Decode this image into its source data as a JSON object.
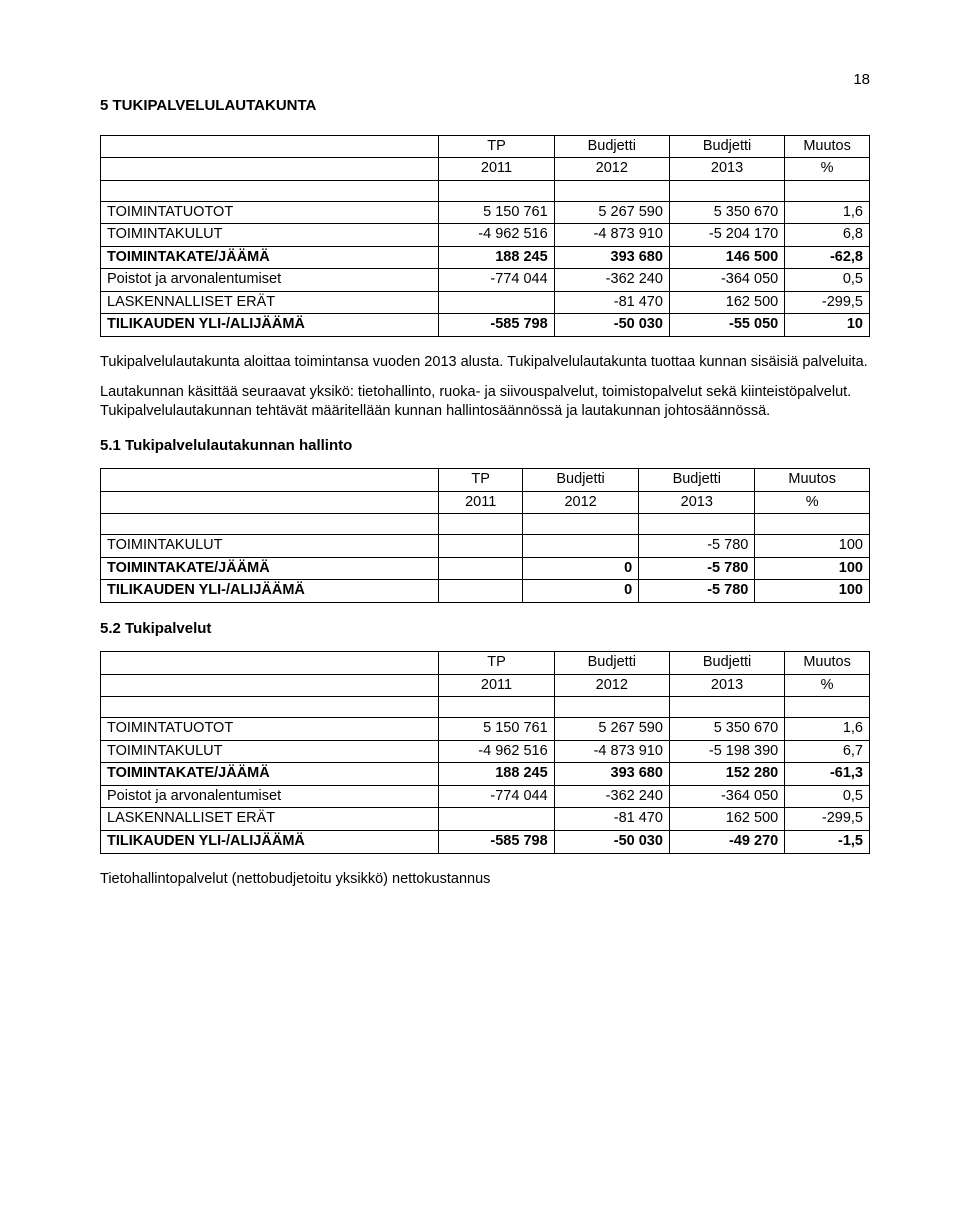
{
  "page_number": "18",
  "heading": "5   TUKIPALVELULAUTAKUNTA",
  "thead": {
    "row1": [
      "",
      "TP",
      "Budjetti",
      "Budjetti",
      "Muutos"
    ],
    "row2": [
      "",
      "2011",
      "2012",
      "2013",
      "%"
    ]
  },
  "table1": [
    {
      "label": "",
      "c1": "",
      "c2": "",
      "c3": "",
      "c4": "",
      "bold": false
    },
    {
      "label": "TOIMINTATUOTOT",
      "c1": "5 150 761",
      "c2": "5 267 590",
      "c3": "5 350 670",
      "c4": "1,6",
      "bold": false
    },
    {
      "label": "TOIMINTAKULUT",
      "c1": "-4 962 516",
      "c2": "-4 873 910",
      "c3": "-5 204 170",
      "c4": "6,8",
      "bold": false
    },
    {
      "label": "TOIMINTAKATE/JÄÄMÄ",
      "c1": "188 245",
      "c2": "393 680",
      "c3": "146 500",
      "c4": "-62,8",
      "bold": true
    },
    {
      "label": "Poistot ja arvonalentumiset",
      "c1": "-774 044",
      "c2": "-362 240",
      "c3": "-364 050",
      "c4": "0,5",
      "bold": false
    },
    {
      "label": "LASKENNALLISET ERÄT",
      "c1": "",
      "c2": "-81 470",
      "c3": "162 500",
      "c4": "-299,5",
      "bold": false
    },
    {
      "label": "TILIKAUDEN YLI-/ALIJÄÄMÄ",
      "c1": "-585 798",
      "c2": "-50 030",
      "c3": "-55 050",
      "c4": "10",
      "bold": true
    }
  ],
  "para1": "Tukipalvelulautakunta aloittaa toimintansa vuoden 2013 alusta. Tukipalvelulautakunta tuottaa kunnan sisäisiä palveluita.",
  "para2": "Lautakunnan käsittää seuraavat yksikö: tietohallinto, ruoka- ja siivouspalvelut, toimistopalvelut sekä kiinteistöpalvelut. Tukipalvelulautakunnan tehtävät määritellään kunnan hallintosäännössä ja lautakunnan johtosäännössä.",
  "heading2": "5.1 Tukipalvelulautakunnan hallinto",
  "table2": [
    {
      "label": "",
      "c1": "",
      "c2": "",
      "c3": "",
      "c4": "",
      "bold": false
    },
    {
      "label": "TOIMINTAKULUT",
      "c1": "",
      "c2": "",
      "c3": "-5 780",
      "c4": "100",
      "bold": false
    },
    {
      "label": "TOIMINTAKATE/JÄÄMÄ",
      "c1": "",
      "c2": "0",
      "c3": "-5 780",
      "c4": "100",
      "bold": true
    },
    {
      "label": "TILIKAUDEN YLI-/ALIJÄÄMÄ",
      "c1": "",
      "c2": "0",
      "c3": "-5 780",
      "c4": "100",
      "bold": true
    }
  ],
  "heading3": "5.2 Tukipalvelut",
  "table3": [
    {
      "label": "",
      "c1": "",
      "c2": "",
      "c3": "",
      "c4": "",
      "bold": false
    },
    {
      "label": "TOIMINTATUOTOT",
      "c1": "5 150 761",
      "c2": "5 267 590",
      "c3": "5 350 670",
      "c4": "1,6",
      "bold": false
    },
    {
      "label": "TOIMINTAKULUT",
      "c1": "-4 962 516",
      "c2": "-4 873 910",
      "c3": "-5 198 390",
      "c4": "6,7",
      "bold": false
    },
    {
      "label": "TOIMINTAKATE/JÄÄMÄ",
      "c1": "188 245",
      "c2": "393 680",
      "c3": "152 280",
      "c4": "-61,3",
      "bold": true
    },
    {
      "label": "Poistot ja arvonalentumiset",
      "c1": "-774 044",
      "c2": "-362 240",
      "c3": "-364 050",
      "c4": "0,5",
      "bold": false
    },
    {
      "label": "LASKENNALLISET ERÄT",
      "c1": "",
      "c2": "-81 470",
      "c3": "162 500",
      "c4": "-299,5",
      "bold": false
    },
    {
      "label": "TILIKAUDEN YLI-/ALIJÄÄMÄ",
      "c1": "-585 798",
      "c2": "-50 030",
      "c3": "-49 270",
      "c4": "-1,5",
      "bold": true
    }
  ],
  "footer": "Tietohallintopalvelut   (nettobudjetoitu yksikkö)  nettokustannus",
  "col_widths": {
    "label": "44%",
    "num": "14%"
  }
}
